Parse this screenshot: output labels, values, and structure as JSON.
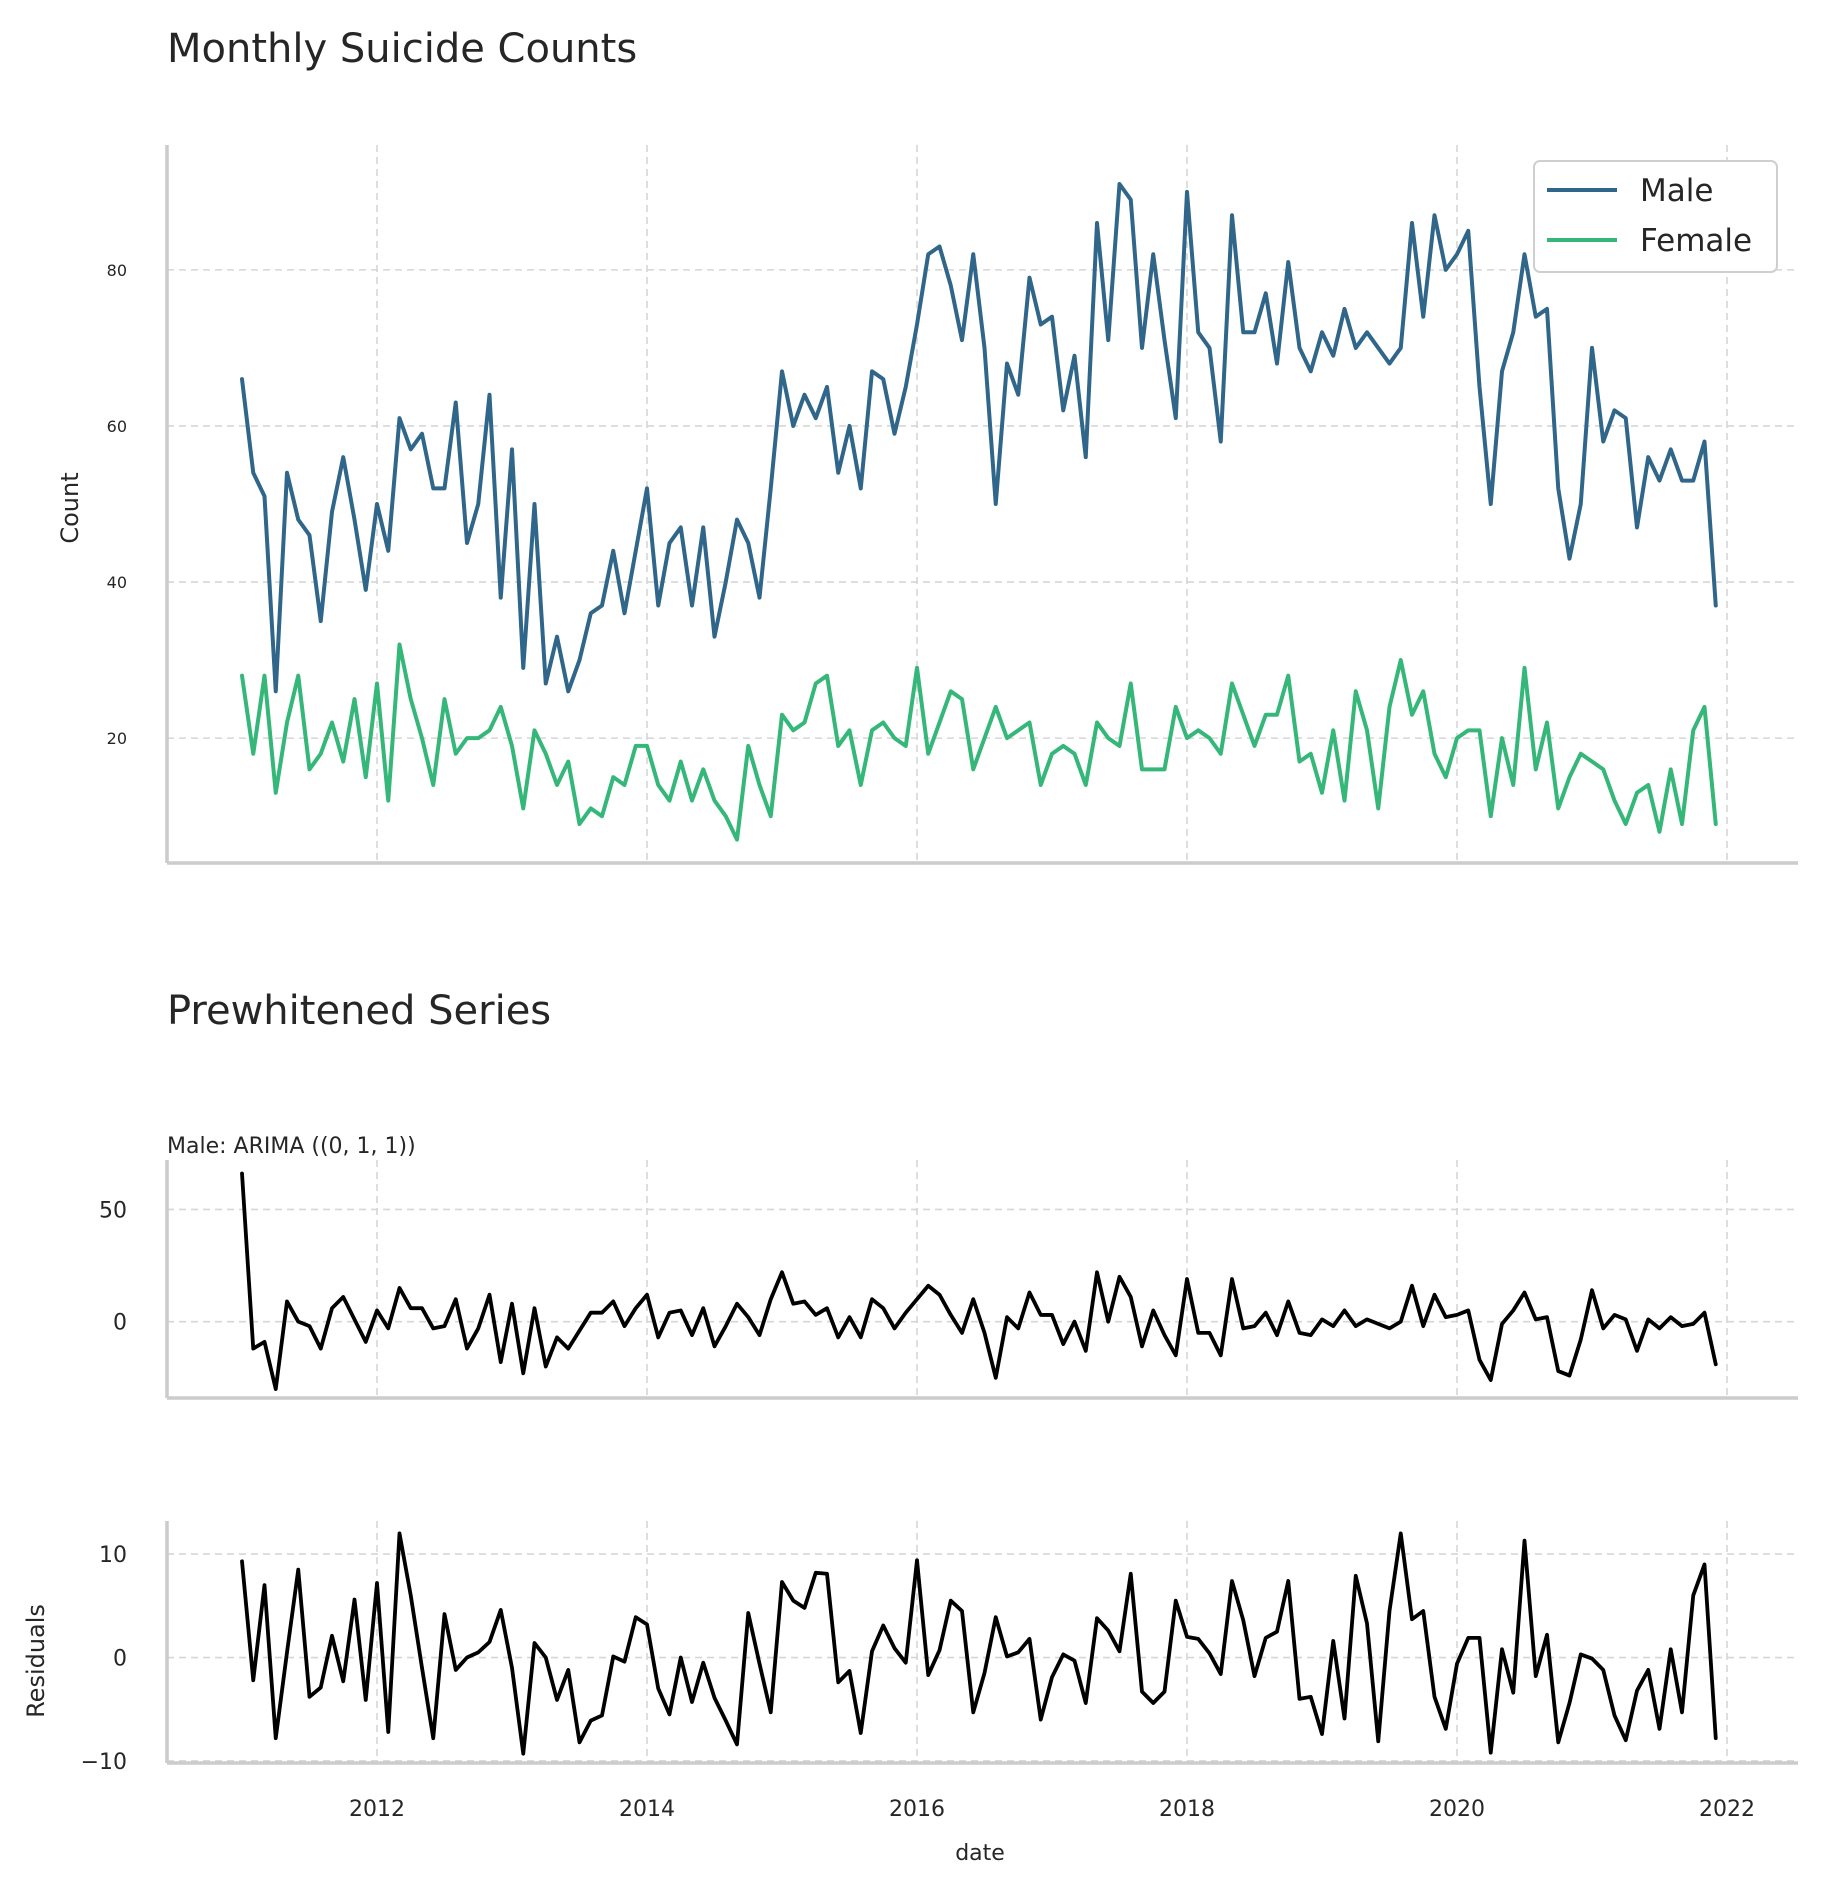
{
  "chart_data": [
    {
      "type": "line",
      "title": "Monthly Suicide Counts",
      "xlabel": "",
      "ylabel": "Count",
      "ylim": [
        4,
        96
      ],
      "yticks": [
        20,
        40,
        60,
        80
      ],
      "legend": {
        "placement": "top-right",
        "entries": [
          "Male",
          "Female"
        ]
      },
      "grid": true,
      "x": {
        "start": "2011-01",
        "end": "2022-01",
        "freq": "monthly"
      },
      "series": [
        {
          "name": "Male",
          "color": "#2f6689",
          "values": [
            66,
            54,
            51,
            26,
            54,
            48,
            46,
            35,
            49,
            56,
            48,
            39,
            50,
            44,
            61,
            57,
            59,
            52,
            52,
            63,
            45,
            50,
            64,
            38,
            57,
            29,
            50,
            27,
            33,
            26,
            30,
            36,
            37,
            44,
            36,
            44,
            52,
            37,
            45,
            47,
            37,
            47,
            33,
            40,
            48,
            45,
            38,
            52,
            67,
            60,
            64,
            61,
            65,
            54,
            60,
            52,
            67,
            66,
            59,
            65,
            73,
            82,
            83,
            78,
            71,
            82,
            70,
            50,
            68,
            64,
            79,
            73,
            74,
            62,
            69,
            56,
            86,
            71,
            91,
            89,
            70,
            82,
            71,
            61,
            90,
            72,
            70,
            58,
            87,
            72,
            72,
            77,
            68,
            81,
            70,
            67,
            72,
            69,
            75,
            70,
            72,
            70,
            68,
            70,
            86,
            74,
            87,
            80,
            82,
            85,
            65,
            50,
            67,
            72,
            82,
            74,
            75,
            52,
            43,
            50,
            70,
            58,
            62,
            61,
            47,
            56,
            53,
            57,
            53,
            53,
            58,
            37
          ]
        },
        {
          "name": "Female",
          "color": "#35b779",
          "values": [
            28,
            18,
            28,
            13,
            22,
            28,
            16,
            18,
            22,
            17,
            25,
            15,
            27,
            12,
            32,
            25,
            20,
            14,
            25,
            18,
            20,
            20,
            21,
            24,
            19,
            11,
            21,
            18,
            14,
            17,
            9,
            11,
            10,
            15,
            14,
            19,
            19,
            14,
            12,
            17,
            12,
            16,
            12,
            10,
            7,
            19,
            14,
            10,
            23,
            21,
            22,
            27,
            28,
            19,
            21,
            14,
            21,
            22,
            20,
            19,
            29,
            18,
            22,
            26,
            25,
            16,
            20,
            24,
            20,
            21,
            22,
            14,
            18,
            19,
            18,
            14,
            22,
            20,
            19,
            27,
            16,
            16,
            16,
            24,
            20,
            21,
            20,
            18,
            27,
            23,
            19,
            23,
            23,
            28,
            17,
            18,
            13,
            21,
            12,
            26,
            21,
            11,
            24,
            30,
            23,
            26,
            18,
            15,
            20,
            21,
            21,
            10,
            20,
            14,
            29,
            16,
            22,
            11,
            15,
            18,
            17,
            16,
            12,
            9,
            13,
            14,
            8,
            16,
            9,
            21,
            24,
            9
          ]
        }
      ]
    },
    {
      "type": "line",
      "title": "Prewhitened Series",
      "subtitle": "Male: ARIMA ((0, 1, 1))",
      "ylim": [
        -34,
        72
      ],
      "yticks": [
        0,
        50
      ],
      "grid": true,
      "x": {
        "start": "2011-01",
        "end": "2022-01",
        "freq": "monthly"
      },
      "series": [
        {
          "color": "#000000",
          "values": [
            66,
            -12,
            -9,
            -30,
            9,
            0,
            -2,
            -12,
            6,
            11,
            1,
            -9,
            5,
            -3,
            15,
            6,
            6,
            -3,
            -2,
            10,
            -12,
            -3,
            12,
            -18,
            8,
            -23,
            6,
            -20,
            -7,
            -12,
            -4,
            4,
            4,
            9,
            -2,
            6,
            12,
            -7,
            4,
            5,
            -6,
            6,
            -11,
            -2,
            8,
            2,
            -6,
            10,
            22,
            8,
            9,
            3,
            6,
            -7,
            2,
            -7,
            10,
            6,
            -3,
            4,
            10,
            16,
            12,
            3,
            -5,
            10,
            -5,
            -25,
            2,
            -3,
            13,
            3,
            3,
            -10,
            0,
            -13,
            22,
            0,
            20,
            11,
            -11,
            5,
            -6,
            -15,
            19,
            -5,
            -5,
            -15,
            19,
            -3,
            -2,
            4,
            -6,
            9,
            -5,
            -6,
            1,
            -2,
            5,
            -2,
            1,
            -1,
            -3,
            0,
            16,
            -2,
            12,
            2,
            3,
            5,
            -17,
            -26,
            -1,
            5,
            13,
            1,
            2,
            -22,
            -24,
            -8,
            14,
            -3,
            3,
            1,
            -13,
            1,
            -3,
            2,
            -2,
            -1,
            4,
            -19
          ]
        }
      ]
    },
    {
      "type": "line",
      "ylabel": "Residuals",
      "xlabel": "date",
      "ylim": [
        -10.2,
        13.2
      ],
      "yticks": [
        -10,
        0,
        10
      ],
      "xticks": [
        "2012",
        "2014",
        "2016",
        "2018",
        "2020",
        "2022"
      ],
      "grid": true,
      "x": {
        "start": "2011-01",
        "end": "2022-01",
        "freq": "monthly"
      },
      "series": [
        {
          "color": "#000000",
          "values": [
            9.3,
            -2.2,
            7,
            -7.8,
            0.5,
            8.5,
            -3.8,
            -2.9,
            2.1,
            -2.3,
            5.6,
            -4.1,
            7.2,
            -7.2,
            12,
            6,
            -1,
            -7.8,
            4.2,
            -1.2,
            0,
            0.5,
            1.5,
            4.6,
            -1,
            -9.3,
            1.4,
            0,
            -4.1,
            -1.2,
            -8.2,
            -6.1,
            -5.6,
            0.1,
            -0.4,
            3.9,
            3.2,
            -3,
            -5.5,
            0,
            -4.3,
            -0.5,
            -3.9,
            -6.1,
            -8.4,
            4.3,
            -0.6,
            -5.3,
            7.3,
            5.5,
            4.8,
            8.2,
            8.1,
            -2.4,
            -1.3,
            -7.3,
            0.6,
            3.1,
            0.9,
            -0.5,
            9.4,
            -1.7,
            0.7,
            5.5,
            4.5,
            -5.3,
            -1.5,
            3.9,
            0.1,
            0.5,
            1.8,
            -6,
            -1.9,
            0.3,
            -0.3,
            -4.4,
            3.8,
            2.6,
            0.6,
            8.1,
            -3.3,
            -4.4,
            -3.3,
            5.5,
            2,
            1.8,
            0.4,
            -1.6,
            7.4,
            3.6,
            -1.8,
            1.9,
            2.5,
            7.4,
            -4,
            -3.8,
            -7.4,
            1.6,
            -5.9,
            7.9,
            3.3,
            -8.1,
            4.5,
            12,
            3.7,
            4.5,
            -3.8,
            -6.9,
            -0.6,
            1.9,
            1.9,
            -9.2,
            0.8,
            -3.4,
            11.3,
            -1.8,
            2.2,
            -8.2,
            -4.4,
            0.3,
            -0.1,
            -1.2,
            -5.6,
            -8,
            -3.2,
            -1.2,
            -6.9,
            0.8,
            -5.3,
            6,
            9,
            -7.8
          ]
        }
      ]
    }
  ]
}
